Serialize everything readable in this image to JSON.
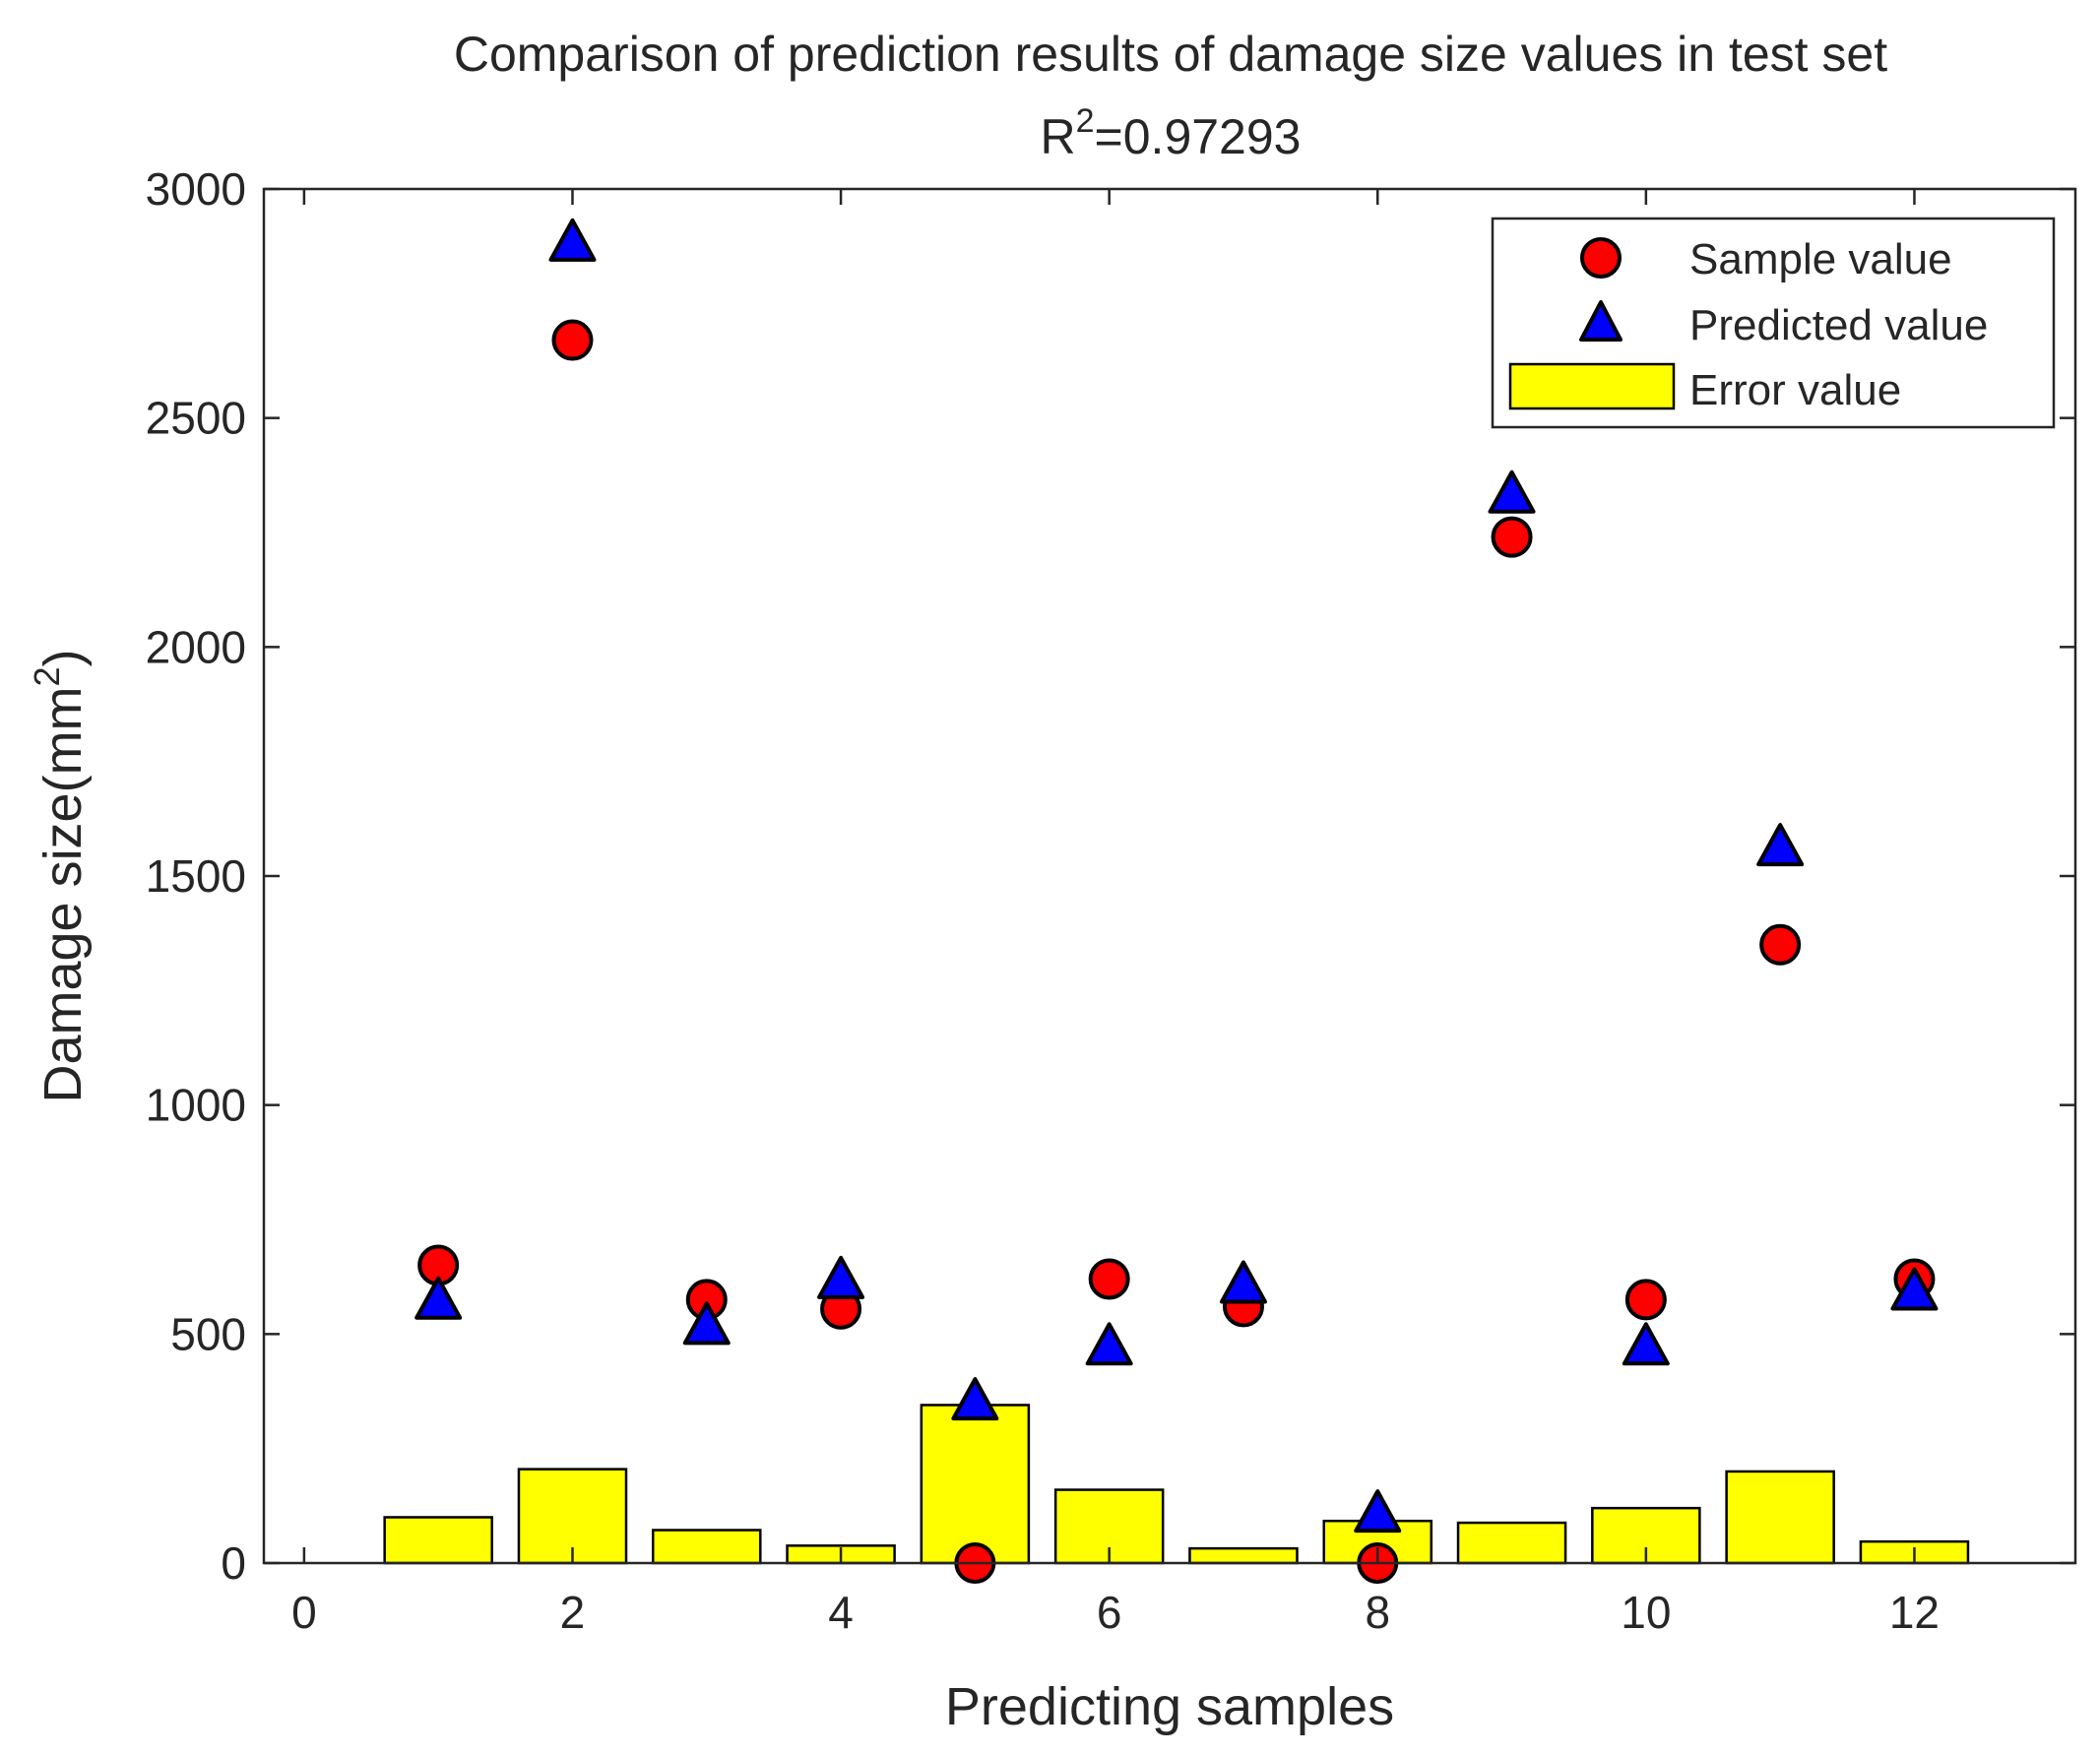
{
  "chart_data": {
    "type": "bar+scatter",
    "title": "Comparison of prediction results of damage size values in test set",
    "subtitle": {
      "base": "R",
      "superscript": "2",
      "rest": "=0.97293"
    },
    "xlabel": "Predicting samples",
    "ylabel": {
      "base": "Damage size(mm",
      "superscript": "2",
      "rest": ")"
    },
    "xlim": [
      -0.3,
      13.2
    ],
    "ylim": [
      0,
      3000
    ],
    "xticks": [
      0,
      2,
      4,
      6,
      8,
      10,
      12
    ],
    "yticks": [
      0,
      500,
      1000,
      1500,
      2000,
      2500,
      3000
    ],
    "x": [
      1,
      2,
      3,
      4,
      5,
      6,
      7,
      8,
      9,
      10,
      11,
      12
    ],
    "series": [
      {
        "name": "Sample value",
        "kind": "scatter",
        "marker": "circle",
        "color": "#ff0000",
        "values": [
          650,
          2670,
          575,
          555,
          0,
          620,
          560,
          0,
          2240,
          575,
          1350,
          620
        ]
      },
      {
        "name": "Predicted value",
        "kind": "scatter",
        "marker": "triangle",
        "color": "#0000ff",
        "values": [
          570,
          2880,
          515,
          615,
          350,
          470,
          605,
          105,
          2330,
          470,
          1560,
          590
        ]
      },
      {
        "name": "Error value",
        "kind": "bar",
        "color": "#ffff00",
        "values": [
          100,
          205,
          72,
          38,
          345,
          160,
          32,
          92,
          88,
          120,
          200,
          47
        ]
      }
    ],
    "legend": {
      "position": "top-right",
      "labels": [
        "Sample value",
        "Predicted value",
        "Error value"
      ]
    }
  }
}
